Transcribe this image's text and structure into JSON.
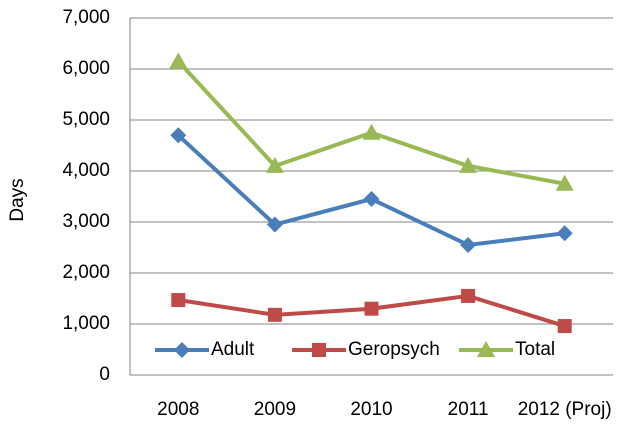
{
  "chart_data": {
    "type": "line",
    "y_label": "Days",
    "categories": [
      "2008",
      "2009",
      "2010",
      "2011",
      "2012 (Proj)"
    ],
    "series": [
      {
        "name": "Adult",
        "color": "#4a7ebb",
        "marker": "diamond",
        "values": [
          4700,
          2950,
          3450,
          2550,
          2780
        ]
      },
      {
        "name": "Geropsych",
        "color": "#be4b48",
        "marker": "square",
        "values": [
          1470,
          1180,
          1300,
          1550,
          960
        ]
      },
      {
        "name": "Total",
        "color": "#98b954",
        "marker": "triangle",
        "values": [
          6150,
          4100,
          4750,
          4100,
          3750
        ]
      }
    ],
    "ylim": [
      0,
      7000
    ],
    "yticks": [
      0,
      {
        "value": 1000,
        "label": "1,000"
      },
      {
        "value": 2000,
        "label": "2,000"
      },
      {
        "value": 3000,
        "label": "3,000"
      },
      {
        "value": 4000,
        "label": "4,000"
      },
      {
        "value": 5000,
        "label": "5,000"
      },
      {
        "value": 6000,
        "label": "6,000"
      },
      {
        "value": 7000,
        "label": "7,000"
      }
    ],
    "grid": true,
    "legend": "bottom"
  }
}
